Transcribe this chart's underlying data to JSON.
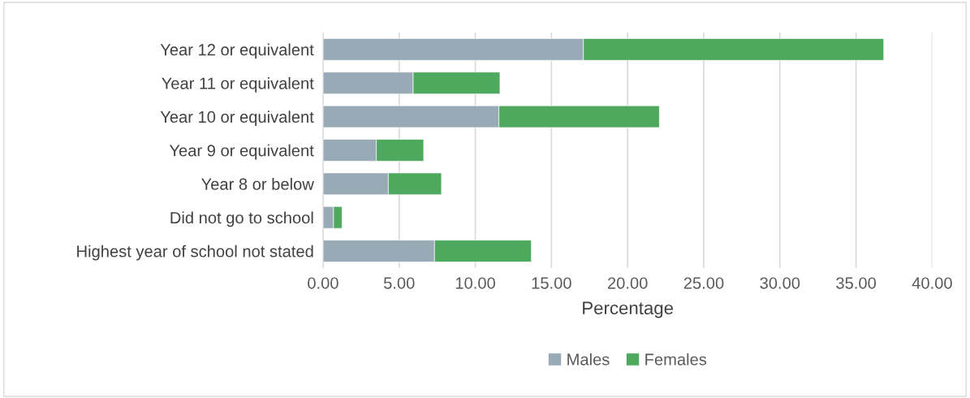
{
  "chart_data": {
    "type": "bar",
    "orientation": "horizontal",
    "stacked": true,
    "categories": [
      "Year 12 or equivalent",
      "Year 11 or equivalent",
      "Year 10 or equivalent",
      "Year 9 or equivalent",
      "Year 8 or below",
      "Did not go to school",
      "Highest year of school not stated"
    ],
    "series": [
      {
        "name": "Males",
        "color": "#97aab5",
        "values": [
          17.1,
          5.92,
          11.55,
          3.5,
          4.29,
          0.69,
          7.32
        ]
      },
      {
        "name": "Females",
        "color": "#4ea95e",
        "values": [
          19.72,
          5.7,
          10.54,
          3.11,
          3.49,
          0.56,
          6.36
        ]
      }
    ],
    "xlabel": "Percentage",
    "xlim": [
      0,
      40
    ],
    "xticks": [
      {
        "value": 0,
        "label": "0.00"
      },
      {
        "value": 5,
        "label": "5.00"
      },
      {
        "value": 10,
        "label": "10.00"
      },
      {
        "value": 15,
        "label": "15.00"
      },
      {
        "value": 20,
        "label": "20.00"
      },
      {
        "value": 25,
        "label": "25.00"
      },
      {
        "value": 30,
        "label": "30.00"
      },
      {
        "value": 35,
        "label": "35.00"
      },
      {
        "value": 40,
        "label": "40.00"
      }
    ],
    "grid": "x",
    "legend": "bottom"
  }
}
